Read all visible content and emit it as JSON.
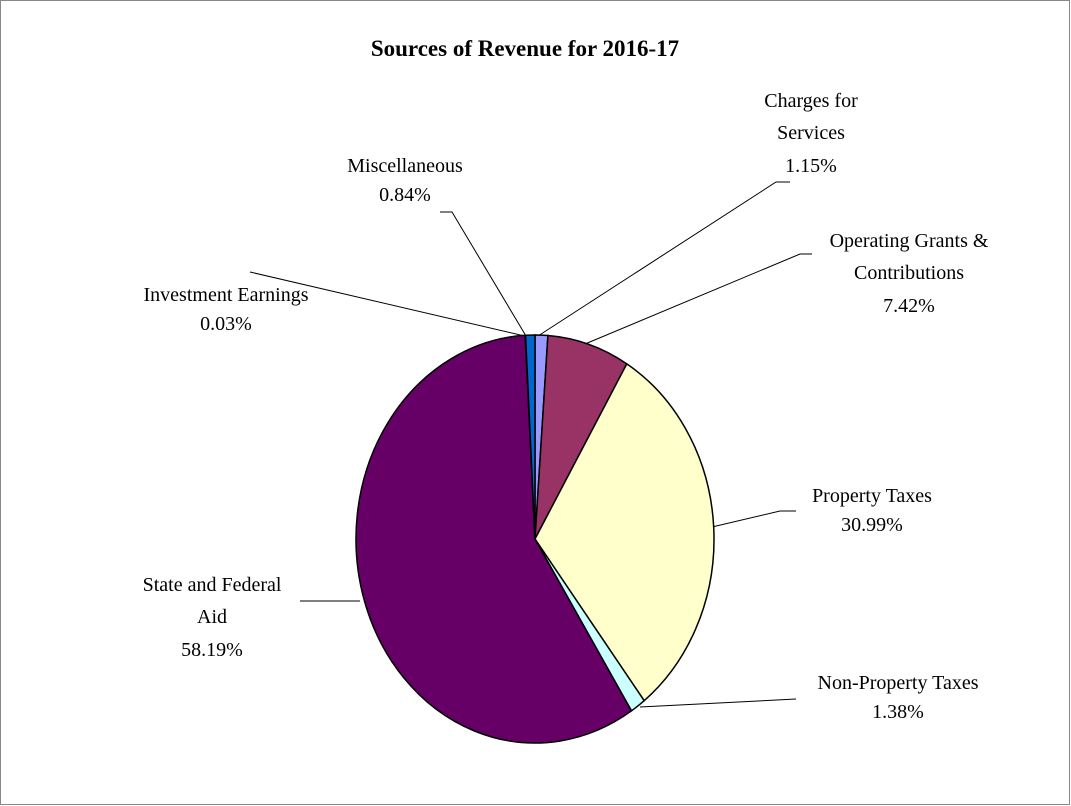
{
  "chart_data": {
    "type": "pie",
    "title": "Sources of Revenue for 2016-17",
    "categories": [
      "Charges for Services",
      "Operating Grants & Contributions",
      "Property Taxes",
      "Non-Property Taxes",
      "State and Federal Aid",
      "Investment Earnings",
      "Miscellaneous"
    ],
    "values": [
      1.15,
      7.42,
      30.99,
      1.38,
      58.19,
      0.03,
      0.84
    ],
    "value_labels": [
      "1.15%",
      "7.42%",
      "30.99%",
      "1.38%",
      "58.19%",
      "0.03%",
      "0.84%"
    ],
    "colors": [
      "#9999ff",
      "#993366",
      "#ffffcc",
      "#ccffff",
      "#660066",
      "#ff8080",
      "#0066cc"
    ]
  }
}
